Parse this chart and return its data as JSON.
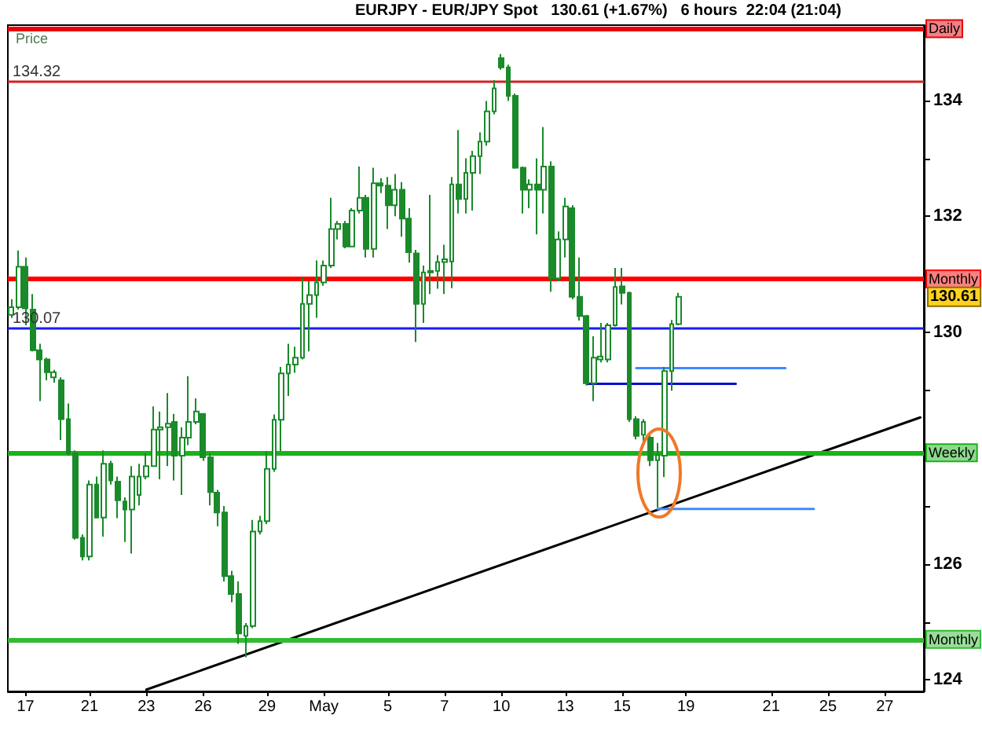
{
  "chart_data": {
    "type": "candlestick",
    "title": "EURJPY - EUR/JPY Spot   130.61 (+1.67%)   6 hours  22:04 (21:04)",
    "ylabel": "Price",
    "color": "#1a8a2a",
    "categories": [
      null,
      null,
      "17",
      null,
      null,
      null,
      null,
      null,
      null,
      null,
      null,
      "21",
      null,
      null,
      null,
      null,
      null,
      null,
      null,
      "23",
      null,
      null,
      null,
      null,
      null,
      null,
      null,
      "26",
      null,
      null,
      null,
      null,
      null,
      null,
      null,
      null,
      "29",
      null,
      null,
      null,
      null,
      null,
      null,
      null,
      "May",
      null,
      null,
      null,
      null,
      null,
      null,
      null,
      null,
      "5",
      null,
      null,
      null,
      null,
      null,
      null,
      null,
      "7",
      null,
      null,
      null,
      null,
      null,
      null,
      null,
      "10",
      null,
      null,
      null,
      null,
      null,
      null,
      null,
      null,
      "13",
      null,
      null,
      null,
      null,
      null,
      null,
      null,
      "15",
      null,
      null,
      null,
      null,
      null,
      null,
      null,
      null,
      "19",
      null,
      null,
      null,
      null,
      null,
      null,
      null,
      null,
      null,
      null,
      null,
      "21",
      null,
      null,
      null,
      null,
      null,
      null,
      null,
      "25",
      null,
      null,
      null,
      null,
      null,
      null,
      null,
      "27",
      null,
      null,
      null,
      null,
      null
    ],
    "ohlc": [
      [
        130.3,
        130.57,
        130.25,
        130.43
      ],
      [
        130.43,
        131.41,
        130.39,
        131.13
      ],
      [
        131.13,
        131.29,
        130.12,
        130.41
      ],
      [
        130.39,
        130.66,
        129.67,
        129.69
      ],
      [
        129.69,
        129.8,
        128.81,
        129.53
      ],
      [
        129.53,
        129.56,
        129.17,
        129.31
      ],
      [
        129.22,
        129.35,
        129.13,
        129.31
      ],
      [
        129.17,
        129.22,
        128.14,
        128.5
      ],
      [
        128.5,
        128.77,
        127.87,
        127.91
      ],
      [
        127.91,
        127.96,
        126.42,
        126.45
      ],
      [
        126.45,
        126.51,
        126.06,
        126.13
      ],
      [
        126.13,
        127.44,
        126.06,
        127.37
      ],
      [
        127.37,
        127.51,
        126.79,
        126.8
      ],
      [
        126.8,
        127.96,
        126.47,
        127.73
      ],
      [
        127.73,
        127.78,
        127.37,
        127.44
      ],
      [
        127.42,
        127.51,
        126.79,
        127.1
      ],
      [
        127.08,
        127.15,
        126.38,
        126.94
      ],
      [
        126.94,
        127.69,
        126.18,
        127.51
      ],
      [
        127.19,
        127.73,
        127.01,
        127.51
      ],
      [
        127.51,
        127.91,
        127.46,
        127.69
      ],
      [
        127.69,
        128.72,
        127.69,
        128.32
      ],
      [
        128.32,
        128.63,
        127.46,
        128.36
      ],
      [
        128.36,
        128.95,
        127.69,
        128.42
      ],
      [
        128.45,
        128.59,
        127.44,
        127.87
      ],
      [
        127.87,
        128.36,
        127.19,
        128.18
      ],
      [
        128.18,
        129.24,
        128.05,
        128.45
      ],
      [
        128.45,
        128.86,
        128.41,
        128.63
      ],
      [
        128.59,
        128.59,
        127.78,
        127.84
      ],
      [
        127.84,
        127.91,
        127.01,
        127.24
      ],
      [
        127.23,
        127.28,
        126.65,
        126.89
      ],
      [
        126.89,
        127.0,
        125.7,
        125.79
      ],
      [
        125.79,
        125.88,
        125.34,
        125.48
      ],
      [
        125.48,
        125.7,
        124.62,
        124.8
      ],
      [
        124.76,
        124.98,
        124.39,
        124.93
      ],
      [
        124.93,
        126.76,
        124.89,
        126.56
      ],
      [
        126.56,
        126.83,
        126.51,
        126.74
      ],
      [
        126.74,
        127.95,
        126.69,
        127.64
      ],
      [
        127.64,
        128.58,
        127.59,
        128.49
      ],
      [
        128.49,
        129.4,
        127.95,
        129.29
      ],
      [
        129.29,
        129.8,
        128.9,
        129.44
      ],
      [
        129.44,
        129.75,
        129.3,
        129.56
      ],
      [
        129.56,
        130.93,
        129.53,
        130.49
      ],
      [
        130.49,
        130.88,
        129.67,
        130.64
      ],
      [
        130.64,
        131.24,
        130.25,
        130.86
      ],
      [
        130.86,
        131.24,
        130.8,
        131.15
      ],
      [
        131.15,
        132.32,
        131.11,
        131.78
      ],
      [
        131.78,
        131.92,
        131.6,
        131.87
      ],
      [
        131.87,
        131.92,
        131.45,
        131.48
      ],
      [
        131.48,
        132.14,
        131.47,
        132.1
      ],
      [
        132.1,
        132.86,
        132.05,
        132.32
      ],
      [
        132.32,
        132.37,
        131.29,
        131.44
      ],
      [
        131.44,
        132.84,
        131.29,
        132.57
      ],
      [
        132.57,
        132.66,
        132.4,
        132.53
      ],
      [
        132.53,
        132.68,
        131.78,
        132.19
      ],
      [
        132.19,
        132.73,
        132.0,
        132.46
      ],
      [
        132.46,
        132.59,
        131.65,
        131.96
      ],
      [
        131.96,
        132.14,
        131.2,
        131.38
      ],
      [
        131.36,
        131.42,
        129.83,
        130.49
      ],
      [
        130.49,
        131.15,
        130.16,
        131.03
      ],
      [
        131.03,
        132.37,
        130.66,
        131.06
      ],
      [
        131.06,
        131.33,
        130.75,
        131.21
      ],
      [
        131.21,
        131.51,
        130.66,
        131.26
      ],
      [
        131.22,
        132.68,
        130.76,
        132.55
      ],
      [
        132.55,
        133.49,
        132.05,
        132.3
      ],
      [
        132.3,
        133.0,
        132.05,
        132.75
      ],
      [
        132.75,
        133.13,
        132.1,
        133.04
      ],
      [
        133.04,
        133.45,
        132.73,
        133.29
      ],
      [
        133.29,
        133.99,
        133.22,
        133.81
      ],
      [
        133.81,
        134.35,
        133.76,
        134.21
      ],
      [
        134.73,
        134.8,
        134.53,
        134.57
      ],
      [
        134.57,
        134.62,
        133.99,
        134.08
      ],
      [
        134.08,
        134.12,
        132.82,
        132.84
      ],
      [
        132.84,
        132.86,
        132.05,
        132.46
      ],
      [
        132.46,
        132.64,
        132.14,
        132.55
      ],
      [
        132.55,
        133.0,
        131.69,
        132.46
      ],
      [
        132.46,
        133.54,
        132.05,
        132.86
      ],
      [
        132.86,
        132.95,
        130.7,
        130.93
      ],
      [
        130.93,
        131.74,
        130.88,
        131.6
      ],
      [
        131.6,
        132.32,
        131.29,
        132.17
      ],
      [
        132.14,
        132.19,
        130.57,
        130.61
      ],
      [
        130.61,
        131.29,
        130.2,
        130.28
      ],
      [
        130.28,
        130.3,
        129.08,
        129.12
      ],
      [
        129.12,
        129.93,
        128.81,
        129.56
      ],
      [
        129.53,
        130.16,
        129.48,
        129.58
      ],
      [
        129.53,
        130.16,
        129.48,
        130.12
      ],
      [
        130.12,
        131.11,
        130.1,
        130.78
      ],
      [
        130.79,
        131.11,
        130.48,
        130.68
      ],
      [
        130.68,
        130.7,
        128.45,
        128.5
      ],
      [
        128.5,
        128.55,
        128.15,
        128.21
      ],
      [
        128.23,
        128.5,
        128.1,
        128.45
      ],
      [
        128.18,
        128.23,
        127.69,
        127.79
      ],
      [
        127.79,
        128.09,
        126.97,
        127.88
      ],
      [
        127.87,
        129.4,
        127.5,
        129.33
      ],
      [
        129.33,
        130.21,
        128.99,
        130.14
      ],
      [
        130.14,
        130.68,
        130.12,
        130.61
      ],
      null,
      null,
      null,
      null,
      null,
      null,
      null,
      null,
      null,
      null,
      null,
      null,
      null,
      null,
      null,
      null,
      null,
      null,
      null,
      null,
      null,
      null,
      null,
      null,
      null,
      null,
      null,
      null,
      null,
      null,
      null,
      null,
      null,
      null
    ],
    "series": [
      {
        "type": "line",
        "color": "#000000",
        "values": [
          null,
          null,
          null,
          null,
          null,
          null,
          null,
          null,
          null,
          null,
          null,
          null,
          null,
          null,
          null,
          null,
          null,
          null,
          null,
          123.83,
          null,
          null,
          null,
          null,
          null,
          null,
          null,
          null,
          null,
          null,
          null,
          null,
          null,
          null,
          null,
          null,
          null,
          null,
          null,
          null,
          null,
          null,
          null,
          null,
          null,
          null,
          null,
          null,
          null,
          null,
          null,
          null,
          null,
          null,
          null,
          null,
          null,
          null,
          null,
          null,
          null,
          null,
          null,
          null,
          null,
          null,
          null,
          null,
          null,
          null,
          null,
          null,
          null,
          null,
          null,
          null,
          null,
          null,
          null,
          null,
          null,
          null,
          null,
          null,
          null,
          null,
          null,
          null,
          null,
          null,
          null,
          null,
          null,
          null,
          null,
          null,
          null,
          null,
          null,
          null,
          null,
          null,
          null,
          null,
          null,
          null,
          null,
          null,
          null,
          null,
          null,
          null,
          null,
          null,
          null,
          null,
          null,
          null,
          null,
          null,
          null,
          null,
          null,
          null,
          null,
          null,
          null,
          null,
          128.53
        ]
      },
      {
        "type": "line",
        "color": "#3d8bff",
        "values": [
          null,
          null,
          null,
          null,
          null,
          null,
          null,
          null,
          null,
          null,
          null,
          null,
          null,
          null,
          null,
          null,
          null,
          null,
          null,
          null,
          null,
          null,
          null,
          null,
          null,
          null,
          null,
          null,
          null,
          null,
          null,
          null,
          null,
          null,
          null,
          null,
          null,
          null,
          null,
          null,
          null,
          null,
          null,
          null,
          null,
          null,
          null,
          null,
          null,
          null,
          null,
          null,
          null,
          null,
          null,
          null,
          null,
          null,
          null,
          null,
          null,
          null,
          null,
          null,
          null,
          null,
          null,
          null,
          null,
          null,
          null,
          null,
          null,
          null,
          null,
          null,
          null,
          null,
          null,
          null,
          null,
          null,
          null,
          null,
          null,
          null,
          null,
          null,
          129.38,
          null,
          null,
          null,
          null,
          null,
          null,
          null,
          null,
          null,
          null,
          null,
          null,
          null,
          null,
          null,
          null,
          null,
          null,
          null,
          null,
          129.38,
          null,
          null,
          null,
          null,
          null,
          null,
          null,
          null,
          null,
          null,
          null,
          null,
          null,
          null,
          null,
          null,
          null,
          null,
          null
        ]
      },
      {
        "type": "line",
        "color": "#0a0ad0",
        "values": [
          null,
          null,
          null,
          null,
          null,
          null,
          null,
          null,
          null,
          null,
          null,
          null,
          null,
          null,
          null,
          null,
          null,
          null,
          null,
          null,
          null,
          null,
          null,
          null,
          null,
          null,
          null,
          null,
          null,
          null,
          null,
          null,
          null,
          null,
          null,
          null,
          null,
          null,
          null,
          null,
          null,
          null,
          null,
          null,
          null,
          null,
          null,
          null,
          null,
          null,
          null,
          null,
          null,
          null,
          null,
          null,
          null,
          null,
          null,
          null,
          null,
          null,
          null,
          null,
          null,
          null,
          null,
          null,
          null,
          null,
          null,
          null,
          null,
          null,
          null,
          null,
          null,
          null,
          null,
          null,
          null,
          129.11,
          null,
          null,
          null,
          null,
          null,
          null,
          null,
          null,
          null,
          null,
          null,
          null,
          null,
          null,
          null,
          null,
          null,
          null,
          null,
          null,
          129.11,
          null,
          null,
          null,
          null,
          null,
          null,
          null,
          null,
          null,
          null,
          null,
          null,
          null,
          null,
          null,
          null,
          null,
          null,
          null,
          null,
          null,
          null,
          null,
          null,
          null,
          null
        ]
      },
      {
        "type": "line",
        "color": "#3d8bff",
        "values": [
          null,
          null,
          null,
          null,
          null,
          null,
          null,
          null,
          null,
          null,
          null,
          null,
          null,
          null,
          null,
          null,
          null,
          null,
          null,
          null,
          null,
          null,
          null,
          null,
          null,
          null,
          null,
          null,
          null,
          null,
          null,
          null,
          null,
          null,
          null,
          null,
          null,
          null,
          null,
          null,
          null,
          null,
          null,
          null,
          null,
          null,
          null,
          null,
          null,
          null,
          null,
          null,
          null,
          null,
          null,
          null,
          null,
          null,
          null,
          null,
          null,
          null,
          null,
          null,
          null,
          null,
          null,
          null,
          null,
          null,
          null,
          null,
          null,
          null,
          null,
          null,
          null,
          null,
          null,
          null,
          null,
          null,
          null,
          null,
          null,
          null,
          null,
          null,
          null,
          null,
          null,
          126.95,
          null,
          null,
          null,
          null,
          null,
          null,
          null,
          null,
          null,
          null,
          null,
          null,
          null,
          null,
          null,
          null,
          null,
          null,
          null,
          null,
          null,
          126.95,
          null,
          null,
          null,
          null,
          null,
          null,
          null,
          null,
          null,
          null,
          null,
          null,
          null,
          null,
          null
        ]
      }
    ],
    "ylim": [
      123.8,
      135.3
    ],
    "yticks": [
      124,
      {
        "value": 125,
        "label": null
      },
      126,
      {
        "value": 127,
        "label": null
      },
      {
        "value": 128,
        "label": null
      },
      {
        "value": 129,
        "label": null
      },
      130,
      {
        "value": 131,
        "label": null
      },
      132,
      {
        "value": 133,
        "label": null
      },
      134
    ],
    "ref_lines": [
      {
        "axis": "y",
        "value": 135.24,
        "label": "Daily",
        "color": "#e8000b"
      },
      {
        "axis": "y",
        "value": 134.32,
        "color": "#d42020"
      },
      {
        "axis": "y",
        "value": 130.92,
        "label": "Monthly",
        "color": "#ff0000"
      },
      {
        "axis": "y",
        "value": 130.07,
        "color": "#1a1aff"
      },
      {
        "axis": "y",
        "value": 127.92,
        "label": "Weekly",
        "color": "#19b319"
      },
      {
        "axis": "y",
        "value": 124.7,
        "label": "Monthly",
        "color": "#33bb33"
      }
    ],
    "annotations": [
      {
        "text": "134.32",
        "y": 134.32
      },
      {
        "text": "130.07",
        "y": 130.07
      },
      {
        "text": "130.61",
        "y": 130.61
      }
    ],
    "grid": false
  }
}
